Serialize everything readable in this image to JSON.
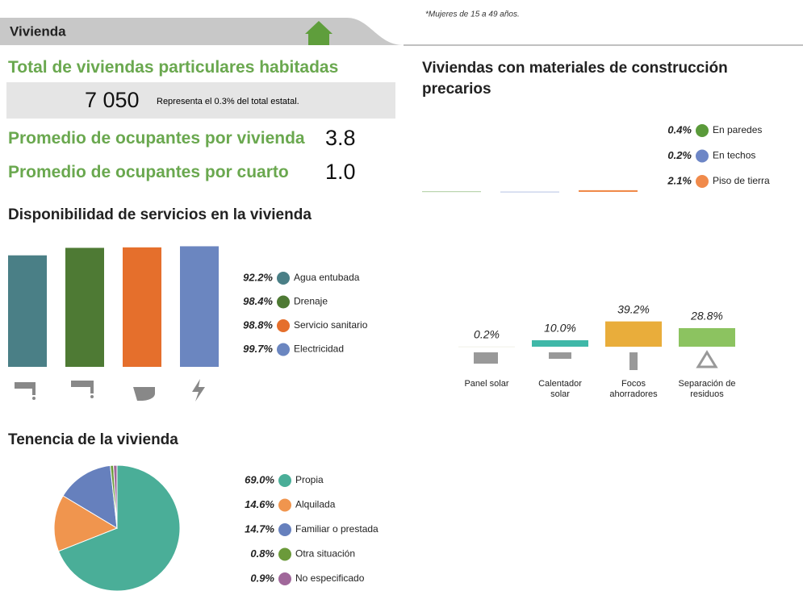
{
  "note": "*Mujeres de 15 a 49 años.",
  "header": {
    "title": "Vivienda"
  },
  "stats": {
    "total_label": "Total de viviendas particulares habitadas",
    "total_value": "7 050",
    "total_note": "Representa el 0.3% del total estatal.",
    "rows": [
      {
        "label": "Promedio de ocupantes por vivienda",
        "value": "3.8"
      },
      {
        "label": "Promedio de ocupantes por cuarto",
        "value": "1.0"
      }
    ]
  },
  "chart_data": [
    {
      "type": "bar",
      "title": "Disponibilidad de servicios en la vivienda",
      "categories": [
        "Agua entubada",
        "Drenaje",
        "Servicio sanitario",
        "Electricidad"
      ],
      "values": [
        92.2,
        98.4,
        98.8,
        99.7
      ],
      "value_labels": [
        "92.2%",
        "98.4%",
        "98.8%",
        "99.7%"
      ],
      "colors": [
        "#4a7f86",
        "#4e7a34",
        "#e56f2c",
        "#6b86c0"
      ]
    },
    {
      "type": "bar",
      "title": "Viviendas con materiales de construcción precarios",
      "categories": [
        "En paredes",
        "En techos",
        "Piso de tierra"
      ],
      "values": [
        0.4,
        0.2,
        2.1
      ],
      "value_labels": [
        "0.4%",
        "0.2%",
        "2.1%"
      ],
      "colors": [
        "#5a9a3a",
        "#6d86c6",
        "#f08a4b"
      ]
    },
    {
      "type": "bar",
      "categories": [
        "Panel solar",
        "Calentador solar",
        "Focos ahorradores",
        "Separación de residuos"
      ],
      "values": [
        0.2,
        10.0,
        39.2,
        28.8
      ],
      "value_labels": [
        "0.2%",
        "10.0%",
        "39.2%",
        "28.8%"
      ],
      "colors": [
        "#e4e2cf",
        "#3fb8a8",
        "#e9ad3b",
        "#8cc360"
      ]
    },
    {
      "type": "pie",
      "title": "Tenencia de la vivienda",
      "categories": [
        "Propia",
        "Alquilada",
        "Familiar o prestada",
        "Otra situación",
        "No especificado"
      ],
      "values": [
        69.0,
        14.6,
        14.7,
        0.8,
        0.9
      ],
      "value_labels": [
        "69.0%",
        "14.6%",
        "14.7%",
        "0.8%",
        "0.9%"
      ],
      "colors": [
        "#4aae98",
        "#f0954e",
        "#6680bd",
        "#6b9a3a",
        "#a0679a"
      ]
    }
  ]
}
